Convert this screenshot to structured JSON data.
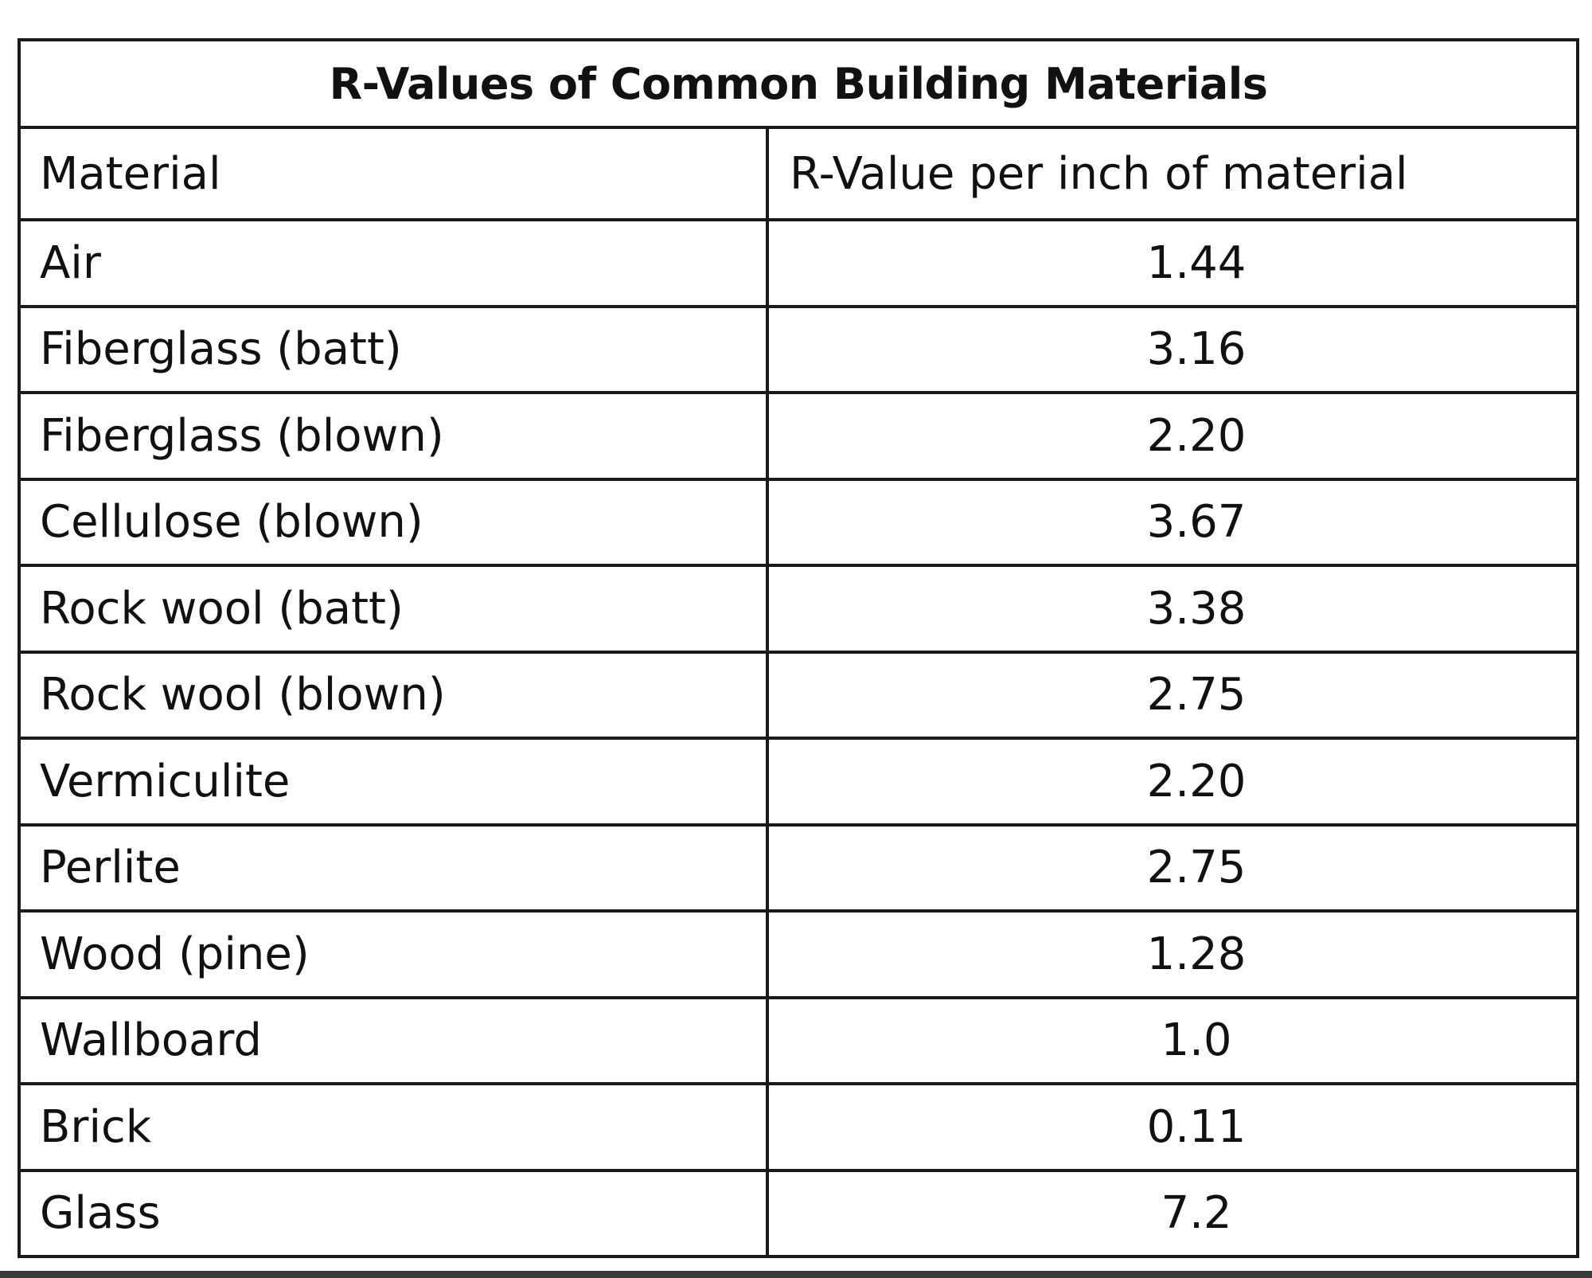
{
  "table": {
    "title": "R-Values of Common Building Materials",
    "headers": [
      "Material",
      "R-Value per inch of material"
    ],
    "rows": [
      {
        "material": "Air",
        "value": "1.44"
      },
      {
        "material": "Fiberglass (batt)",
        "value": "3.16"
      },
      {
        "material": "Fiberglass (blown)",
        "value": "2.20"
      },
      {
        "material": "Cellulose (blown)",
        "value": "3.67"
      },
      {
        "material": "Rock wool (batt)",
        "value": "3.38"
      },
      {
        "material": "Rock wool (blown)",
        "value": "2.75"
      },
      {
        "material": "Vermiculite",
        "value": "2.20"
      },
      {
        "material": "Perlite",
        "value": "2.75"
      },
      {
        "material": "Wood (pine)",
        "value": "1.28"
      },
      {
        "material": "Wallboard",
        "value": "1.0"
      },
      {
        "material": "Brick",
        "value": "0.11"
      },
      {
        "material": "Glass",
        "value": "7.2"
      }
    ]
  }
}
